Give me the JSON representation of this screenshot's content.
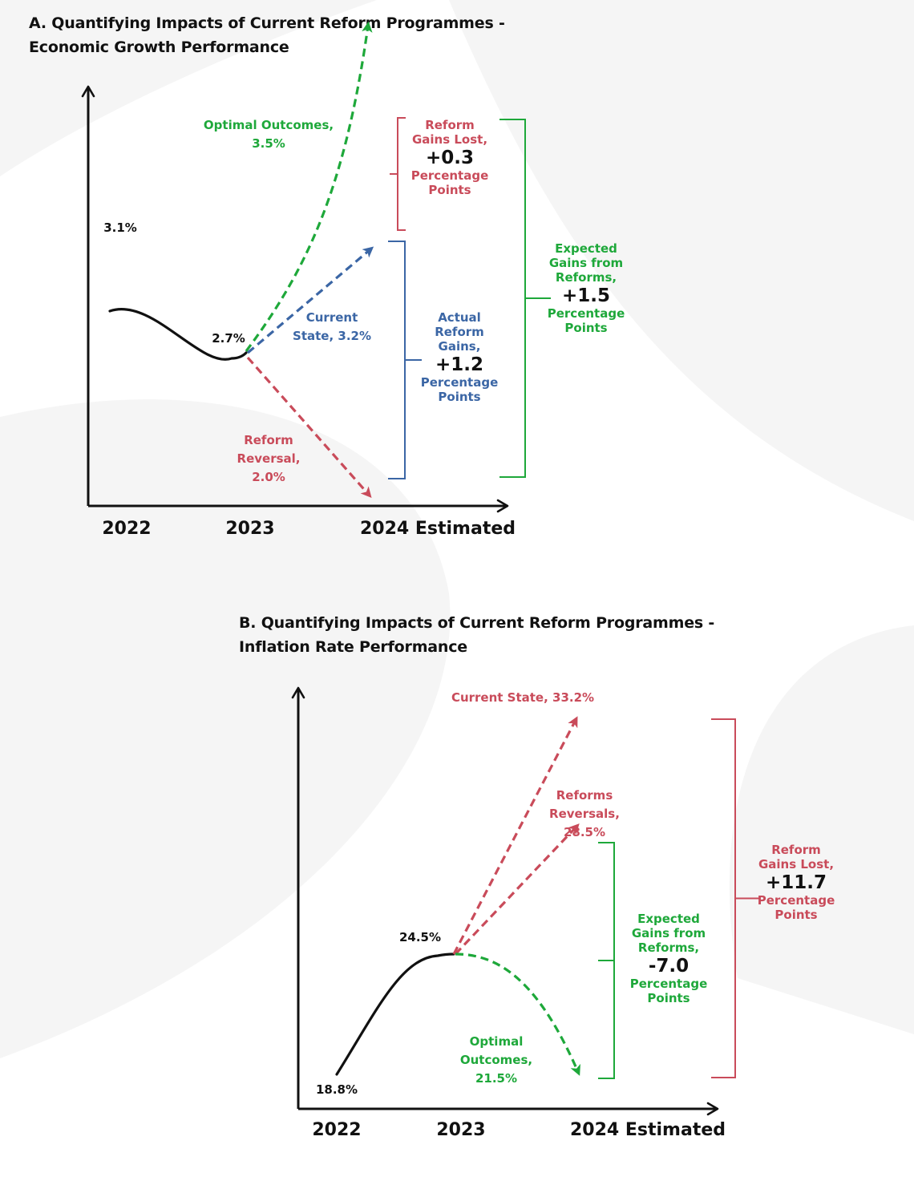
{
  "colors": {
    "green": "#1ea83a",
    "blue": "#3b66a5",
    "red": "#c94b5a",
    "black": "#111111",
    "watermark": "#f5f5f5"
  },
  "chart_data": [
    {
      "type": "line",
      "title": "A. Quantifying Impacts of Current Reform Programmes - Economic Growth Performance",
      "unit": "%",
      "x": [
        "2022",
        "2023",
        "2024 Estimated"
      ],
      "actual": {
        "values": [
          3.1,
          2.7
        ],
        "labels": [
          "3.1%",
          "2.7%"
        ]
      },
      "scenarios": [
        {
          "key": "optimal",
          "value": 3.5,
          "lines": [
            "Optimal Outcomes,",
            "3.5%"
          ],
          "color": "green",
          "style": "dashed-curve"
        },
        {
          "key": "current",
          "value": 3.2,
          "lines": [
            "Current",
            "State, 3.2%"
          ],
          "color": "blue",
          "style": "dashed"
        },
        {
          "key": "reversal",
          "value": 2.0,
          "lines": [
            "Reform",
            "Reversal,",
            "2.0%"
          ],
          "color": "red",
          "style": "dashed"
        }
      ],
      "brackets": [
        {
          "key": "gains_lost",
          "color": "red",
          "lines": [
            "Reform",
            "Gains Lost,"
          ],
          "value": "+0.3",
          "unit_lines": [
            "Percentage",
            "Points"
          ]
        },
        {
          "key": "actual_gains",
          "color": "blue",
          "lines": [
            "Actual",
            "Reform",
            "Gains,"
          ],
          "value": "+1.2",
          "unit_lines": [
            "Percentage",
            "Points"
          ]
        },
        {
          "key": "expected_gains",
          "color": "green",
          "lines": [
            "Expected",
            "Gains from",
            "Reforms,"
          ],
          "value": "+1.5",
          "unit_lines": [
            "Percentage",
            "Points"
          ]
        }
      ]
    },
    {
      "type": "line",
      "title": "B. Quantifying Impacts of Current Reform Programmes - Inflation Rate Performance",
      "unit": "%",
      "x": [
        "2022",
        "2023",
        "2024 Estimated"
      ],
      "actual": {
        "values": [
          18.8,
          24.5
        ],
        "labels": [
          "18.8%",
          "24.5%"
        ]
      },
      "scenarios": [
        {
          "key": "current",
          "value": 33.2,
          "lines": [
            "Current State, 33.2%"
          ],
          "color": "red",
          "style": "dashed"
        },
        {
          "key": "reversals",
          "value": 28.5,
          "lines": [
            "Reforms",
            "Reversals,",
            "28.5%"
          ],
          "color": "red",
          "style": "dashed"
        },
        {
          "key": "optimal",
          "value": 21.5,
          "lines": [
            "Optimal",
            "Outcomes,",
            "21.5%"
          ],
          "color": "green",
          "style": "dashed-curve"
        }
      ],
      "brackets": [
        {
          "key": "expected_gains",
          "color": "green",
          "lines": [
            "Expected",
            "Gains from",
            "Reforms,"
          ],
          "value": "-7.0",
          "unit_lines": [
            "Percentage",
            "Points"
          ]
        },
        {
          "key": "gains_lost",
          "color": "red",
          "lines": [
            "Reform",
            "Gains Lost,"
          ],
          "value": "+11.7",
          "unit_lines": [
            "Percentage",
            "Points"
          ]
        }
      ]
    }
  ]
}
